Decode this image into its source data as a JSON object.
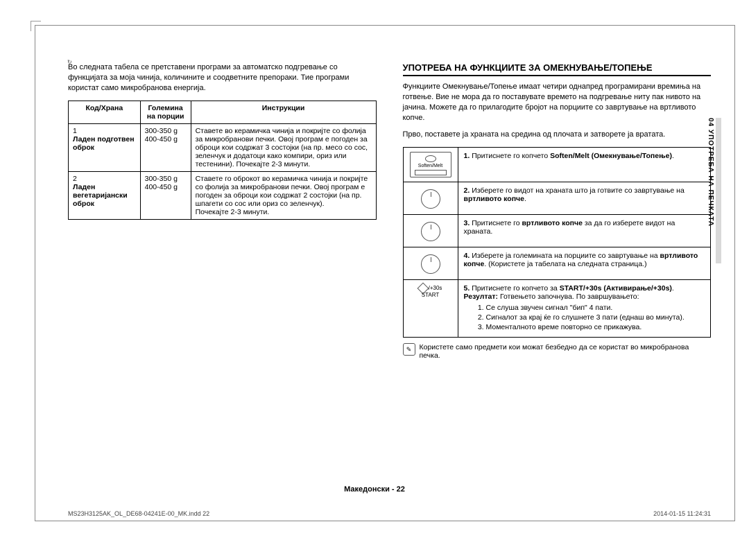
{
  "left": {
    "intro": "Во следната табела се претставени програми за автоматско подгревање со функцијата за моја чинија, количините и соодветните препораки. Тие програми користат само микробранова енергија.",
    "table": {
      "headers": [
        "Код/Храна",
        "Големина на порции",
        "Инструкции"
      ],
      "rows": [
        {
          "code_num": "1",
          "code_name": "Ладен подготвен оброк",
          "portion": "300-350 g\n400-450 g",
          "instr": "Ставете во керамичка чинија и покријте со фолија за микробранови печки. Овој програм е погоден за оброци кои содржат 3 состојки (на пр. месо со сос, зеленчук и додатоци како компири, ориз или тестенини). Почекајте 2-3 минути."
        },
        {
          "code_num": "2",
          "code_name": "Ладен вегетаријански оброк",
          "portion": "300-350 g\n400-450 g",
          "instr": "Ставете го оброкот во керамичка чинија и покријте со фолија за микробранови печки. Овој програм е погоден за оброци кои содржат 2 состојки (на пр. шпагети со сос или ориз со зеленчук).\nПочекајте 2-3 минути."
        }
      ]
    }
  },
  "right": {
    "title": "УПОТРЕБА НА ФУНКЦИИТЕ ЗА ОМЕКНУВАЊЕ/ТОПЕЊЕ",
    "intro": "Функциите Омекнување/Топење имаат четири однапред програмирани времиња на готвење. Вие не мора да го поставувате времето на подгревање ниту пак нивото на јачина. Можете да го прилагодите бројот на порциите со завртување на вртливото копче.",
    "intro2": "Прво, поставете ја храната на средина од плочата и затворете ја вратата.",
    "steps": [
      {
        "icon": "soften",
        "iconlabel": "Soften/Melt",
        "num": "1.",
        "text_pre": "Притиснете го копчето ",
        "bold": "Soften/Melt (Омекнување/Топење)",
        "text_post": "."
      },
      {
        "icon": "knob",
        "num": "2.",
        "text_pre": "Изберете го видот на храната што ја готвите со завртување на ",
        "bold": "вртливото копче",
        "text_post": "."
      },
      {
        "icon": "knob",
        "num": "3.",
        "text_pre": "Притиснете го ",
        "bold": "вртливото копче",
        "text_post": " за да го изберете видот на храната."
      },
      {
        "icon": "knob",
        "num": "4.",
        "text_pre": "Изберете ја големината на порциите со завртување на ",
        "bold": "вртливото копче",
        "text_post": ". (Користете ја табелата на следната страница.)"
      },
      {
        "icon": "start",
        "iconlabel_top": "/+30s",
        "iconlabel_bot": "START",
        "num": "5.",
        "text_pre": "Притиснете го копчето за ",
        "bold": "START/+30s (Активирање/+30s)",
        "text_post": ".",
        "result_label": "Резултат:",
        "result_text": " Готвењето започнува. По завршувањето:",
        "sublist": [
          "Се слуша звучен сигнал \"бип\" 4 пати.",
          "Сигналот за крај ќе го слушнете 3 пати (еднаш во минута).",
          "Моменталното време повторно се прикажува."
        ]
      }
    ],
    "note": "Користете само предмети кои можат безбедно да се користат во микробранова печка."
  },
  "side_tab": "04  УПОТРЕБА НА ПЕЧКАТА",
  "footer_center": "Македонски - 22",
  "footer_left": "MS23H3125AK_OL_DE68-04241E-00_MK.indd   22",
  "footer_right": "2014-01-15   11:24:31"
}
